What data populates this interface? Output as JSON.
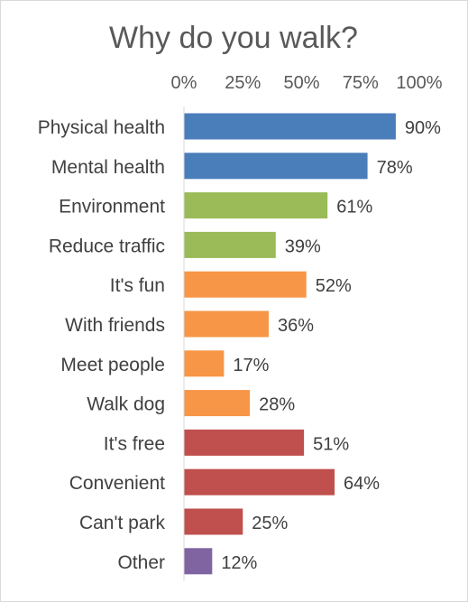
{
  "chart_data": {
    "type": "bar",
    "orientation": "horizontal",
    "title": "Why do you walk?",
    "xlabel": "",
    "ylabel": "",
    "xlim": [
      0,
      100
    ],
    "x_ticks": [
      "0%",
      "25%",
      "50%",
      "75%",
      "100%"
    ],
    "x_axis_position": "top",
    "grid": false,
    "legend": "none",
    "categories": [
      "Physical health",
      "Mental health",
      "Environment",
      "Reduce traffic",
      "It's fun",
      "With friends",
      "Meet people",
      "Walk dog",
      "It's free",
      "Convenient",
      "Can't park",
      "Other"
    ],
    "values": [
      90,
      78,
      61,
      39,
      52,
      36,
      17,
      28,
      51,
      64,
      25,
      12
    ],
    "value_labels": [
      "90%",
      "78%",
      "61%",
      "39%",
      "52%",
      "36%",
      "17%",
      "28%",
      "51%",
      "64%",
      "25%",
      "12%"
    ],
    "bar_colors": [
      "#4a7ebb",
      "#4a7ebb",
      "#9bbb59",
      "#9bbb59",
      "#f79646",
      "#f79646",
      "#f79646",
      "#f79646",
      "#c0504d",
      "#c0504d",
      "#c0504d",
      "#8064a2"
    ]
  }
}
